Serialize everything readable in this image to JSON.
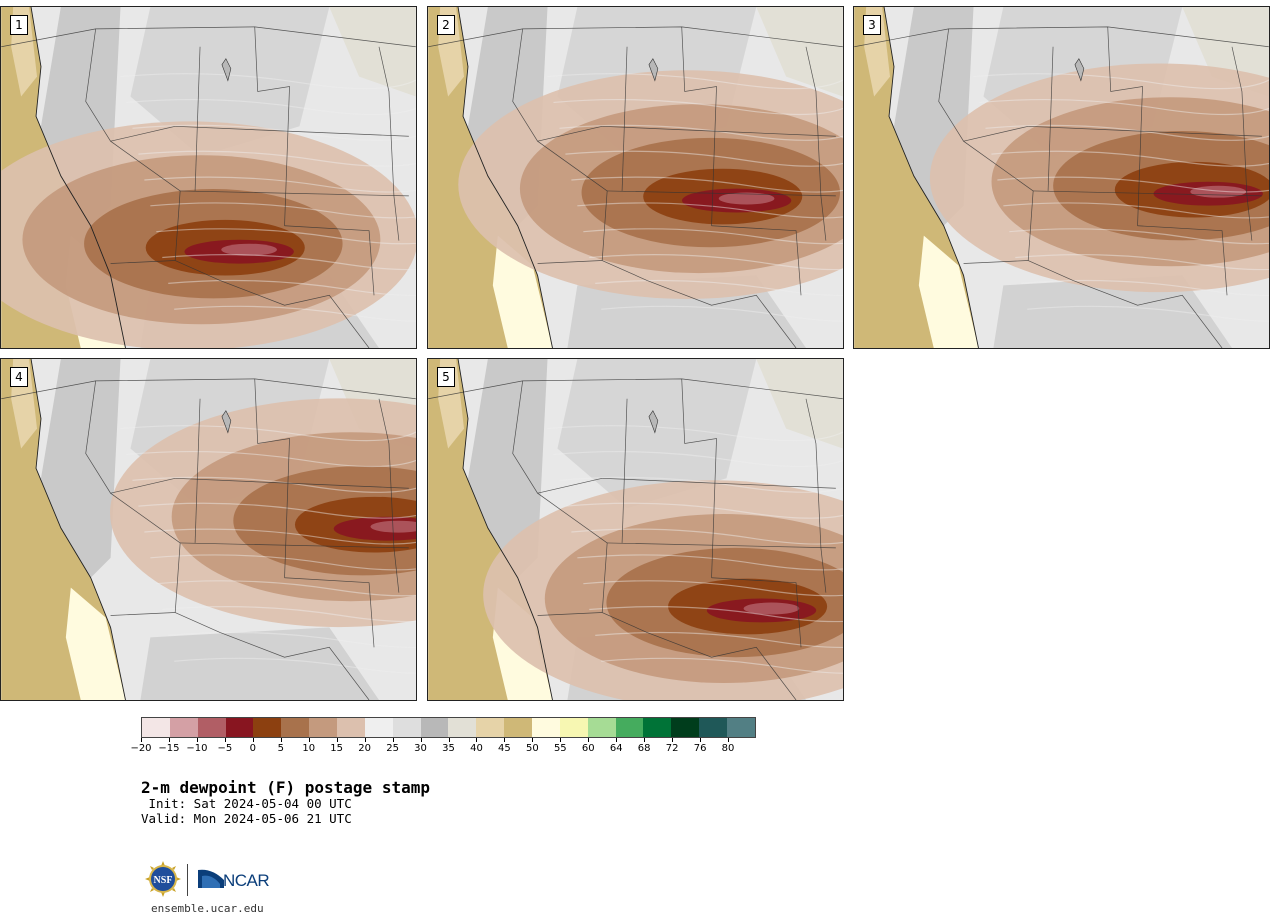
{
  "stamps": [
    {
      "label": "1",
      "hotspot": [
        0.55,
        0.7
      ]
    },
    {
      "label": "2",
      "hotspot": [
        0.72,
        0.55
      ]
    },
    {
      "label": "3",
      "hotspot": [
        0.83,
        0.53
      ]
    },
    {
      "label": "4",
      "hotspot": [
        0.91,
        0.48
      ]
    },
    {
      "label": "5",
      "hotspot": [
        0.78,
        0.72
      ]
    }
  ],
  "colorbar": {
    "colors": [
      "#f3e6e6",
      "#d4a0a5",
      "#b15e65",
      "#881520",
      "#8c4010",
      "#a8724c",
      "#c49a7e",
      "#dcc0ae",
      "#efefef",
      "#dedede",
      "#b8b8b8",
      "#e2e0d6",
      "#e6d3a8",
      "#cfb877",
      "#fffbdf",
      "#f7f7b2",
      "#a6dc95",
      "#45ac5e",
      "#007337",
      "#003d1c",
      "#1f5858",
      "#527f84"
    ],
    "tick_labels": [
      "−20",
      "−15",
      "−10",
      "−5",
      "0",
      "5",
      "10",
      "15",
      "20",
      "25",
      "30",
      "35",
      "40",
      "45",
      "50",
      "55",
      "60",
      "64",
      "68",
      "72",
      "76",
      "80"
    ]
  },
  "title": "2-m dewpoint (F) postage stamp",
  "init": " Init: Sat 2024-05-04 00 UTC",
  "valid": "Valid: Mon 2024-05-06 21 UTC",
  "logo_nsf": "NSF",
  "logo_ncar": "NCAR",
  "website": "ensemble.ucar.edu"
}
